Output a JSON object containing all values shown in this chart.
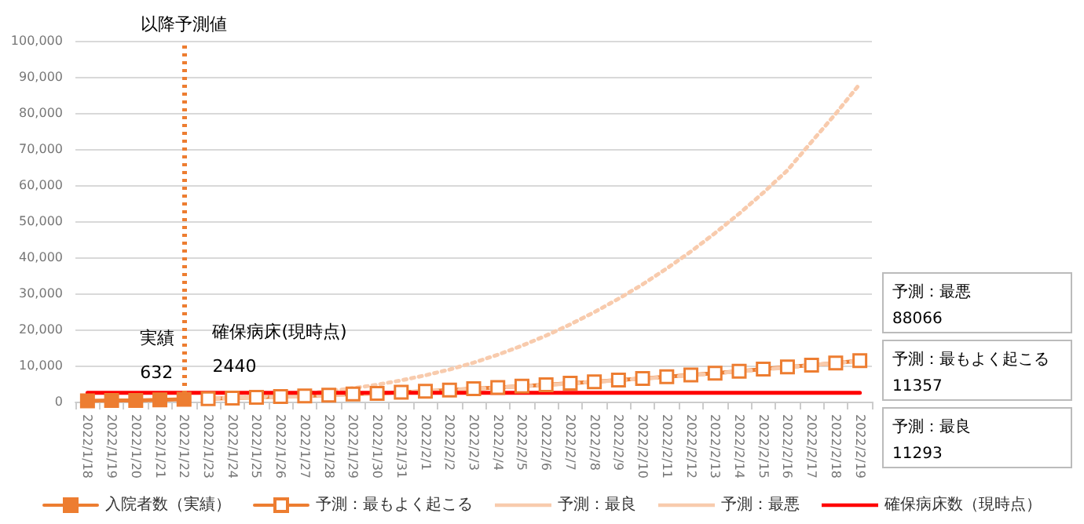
{
  "chart_data": {
    "type": "line",
    "categories": [
      "2022/1/18",
      "2022/1/19",
      "2022/1/20",
      "2022/1/21",
      "2022/1/22",
      "2022/1/23",
      "2022/1/24",
      "2022/1/25",
      "2022/1/26",
      "2022/1/27",
      "2022/1/28",
      "2022/1/29",
      "2022/1/30",
      "2022/1/31",
      "2022/2/1",
      "2022/2/2",
      "2022/2/3",
      "2022/2/4",
      "2022/2/5",
      "2022/2/6",
      "2022/2/7",
      "2022/2/8",
      "2022/2/9",
      "2022/2/10",
      "2022/2/11",
      "2022/2/12",
      "2022/2/13",
      "2022/2/14",
      "2022/2/15",
      "2022/2/16",
      "2022/2/17",
      "2022/2/18",
      "2022/2/19"
    ],
    "series": [
      {
        "name": "入院者数（実績）",
        "color": "#ed7d31",
        "marker": "square",
        "line_style": "solid",
        "values": [
          200,
          300,
          300,
          500,
          632,
          null,
          null,
          null,
          null,
          null,
          null,
          null,
          null,
          null,
          null,
          null,
          null,
          null,
          null,
          null,
          null,
          null,
          null,
          null,
          null,
          null,
          null,
          null,
          null,
          null,
          null,
          null,
          null
        ]
      },
      {
        "name": "予測：最もよく起こる",
        "color": "#ed7d31",
        "marker": "square",
        "line_style": "solid",
        "values": [
          null,
          null,
          null,
          null,
          null,
          800,
          1000,
          1200,
          1400,
          1600,
          1800,
          2100,
          2300,
          2600,
          2900,
          3200,
          3600,
          3900,
          4300,
          4700,
          5100,
          5500,
          6000,
          6400,
          6900,
          7400,
          7900,
          8400,
          9000,
          9600,
          10100,
          10700,
          11357
        ]
      },
      {
        "name": "予測：最良",
        "color": "#f8cbad",
        "marker": "none",
        "line_style": "dashed",
        "values": [
          null,
          null,
          null,
          null,
          null,
          800,
          1000,
          1100,
          1300,
          1500,
          1800,
          2000,
          2300,
          2600,
          2900,
          3200,
          3500,
          3900,
          4300,
          4600,
          5000,
          5500,
          5900,
          6400,
          6800,
          7300,
          7800,
          8400,
          8900,
          9500,
          10100,
          10700,
          11293
        ]
      },
      {
        "name": "予測：最悪",
        "color": "#f8cbad",
        "marker": "none",
        "line_style": "dotted",
        "values": [
          null,
          null,
          null,
          null,
          null,
          900,
          1100,
          1400,
          1800,
          2300,
          2900,
          3700,
          4700,
          5900,
          7300,
          8900,
          10800,
          13000,
          15500,
          18300,
          21400,
          24800,
          28500,
          32500,
          36900,
          41600,
          46700,
          52100,
          57900,
          64100,
          72000,
          79800,
          88066
        ]
      },
      {
        "name": "確保病床数（現時点）",
        "color": "#ff0000",
        "marker": "none",
        "line_style": "solid",
        "values": [
          2440,
          2440,
          2440,
          2440,
          2440,
          2440,
          2440,
          2440,
          2440,
          2440,
          2440,
          2440,
          2440,
          2440,
          2440,
          2440,
          2440,
          2440,
          2440,
          2440,
          2440,
          2440,
          2440,
          2440,
          2440,
          2440,
          2440,
          2440,
          2440,
          2440,
          2440,
          2440,
          2440
        ]
      }
    ],
    "ylim": [
      0,
      100000
    ],
    "yticks": [
      0,
      {
        "value": 10000,
        "label": "10,000"
      },
      {
        "value": 20000,
        "label": "20,000"
      },
      {
        "value": 30000,
        "label": "30,000"
      },
      {
        "value": 40000,
        "label": "40,000"
      },
      {
        "value": 50000,
        "label": "50,000"
      },
      {
        "value": 60000,
        "label": "60,000"
      },
      {
        "value": 70000,
        "label": "70,000"
      },
      {
        "value": 80000,
        "label": "80,000"
      },
      {
        "value": 90000,
        "label": "90,000"
      },
      {
        "value": 100000,
        "label": "100,000"
      }
    ],
    "grid": "y",
    "legend": "bottom",
    "ref_lines": [
      {
        "axis": "x",
        "value": "2022/1/22",
        "label": "以降予測値",
        "color": "#ed7d31",
        "line_style": "dotted"
      }
    ],
    "annotations": [
      {
        "text": "実績\n632",
        "x": "2022/1/22",
        "y": 632
      },
      {
        "text": "確保病床(現時点)\n2440",
        "x": "2022/1/25",
        "y": 2440
      },
      "予測：最悪\n88066",
      "予測：最もよく起こる\n11357",
      "予測：最良\n11293"
    ]
  }
}
